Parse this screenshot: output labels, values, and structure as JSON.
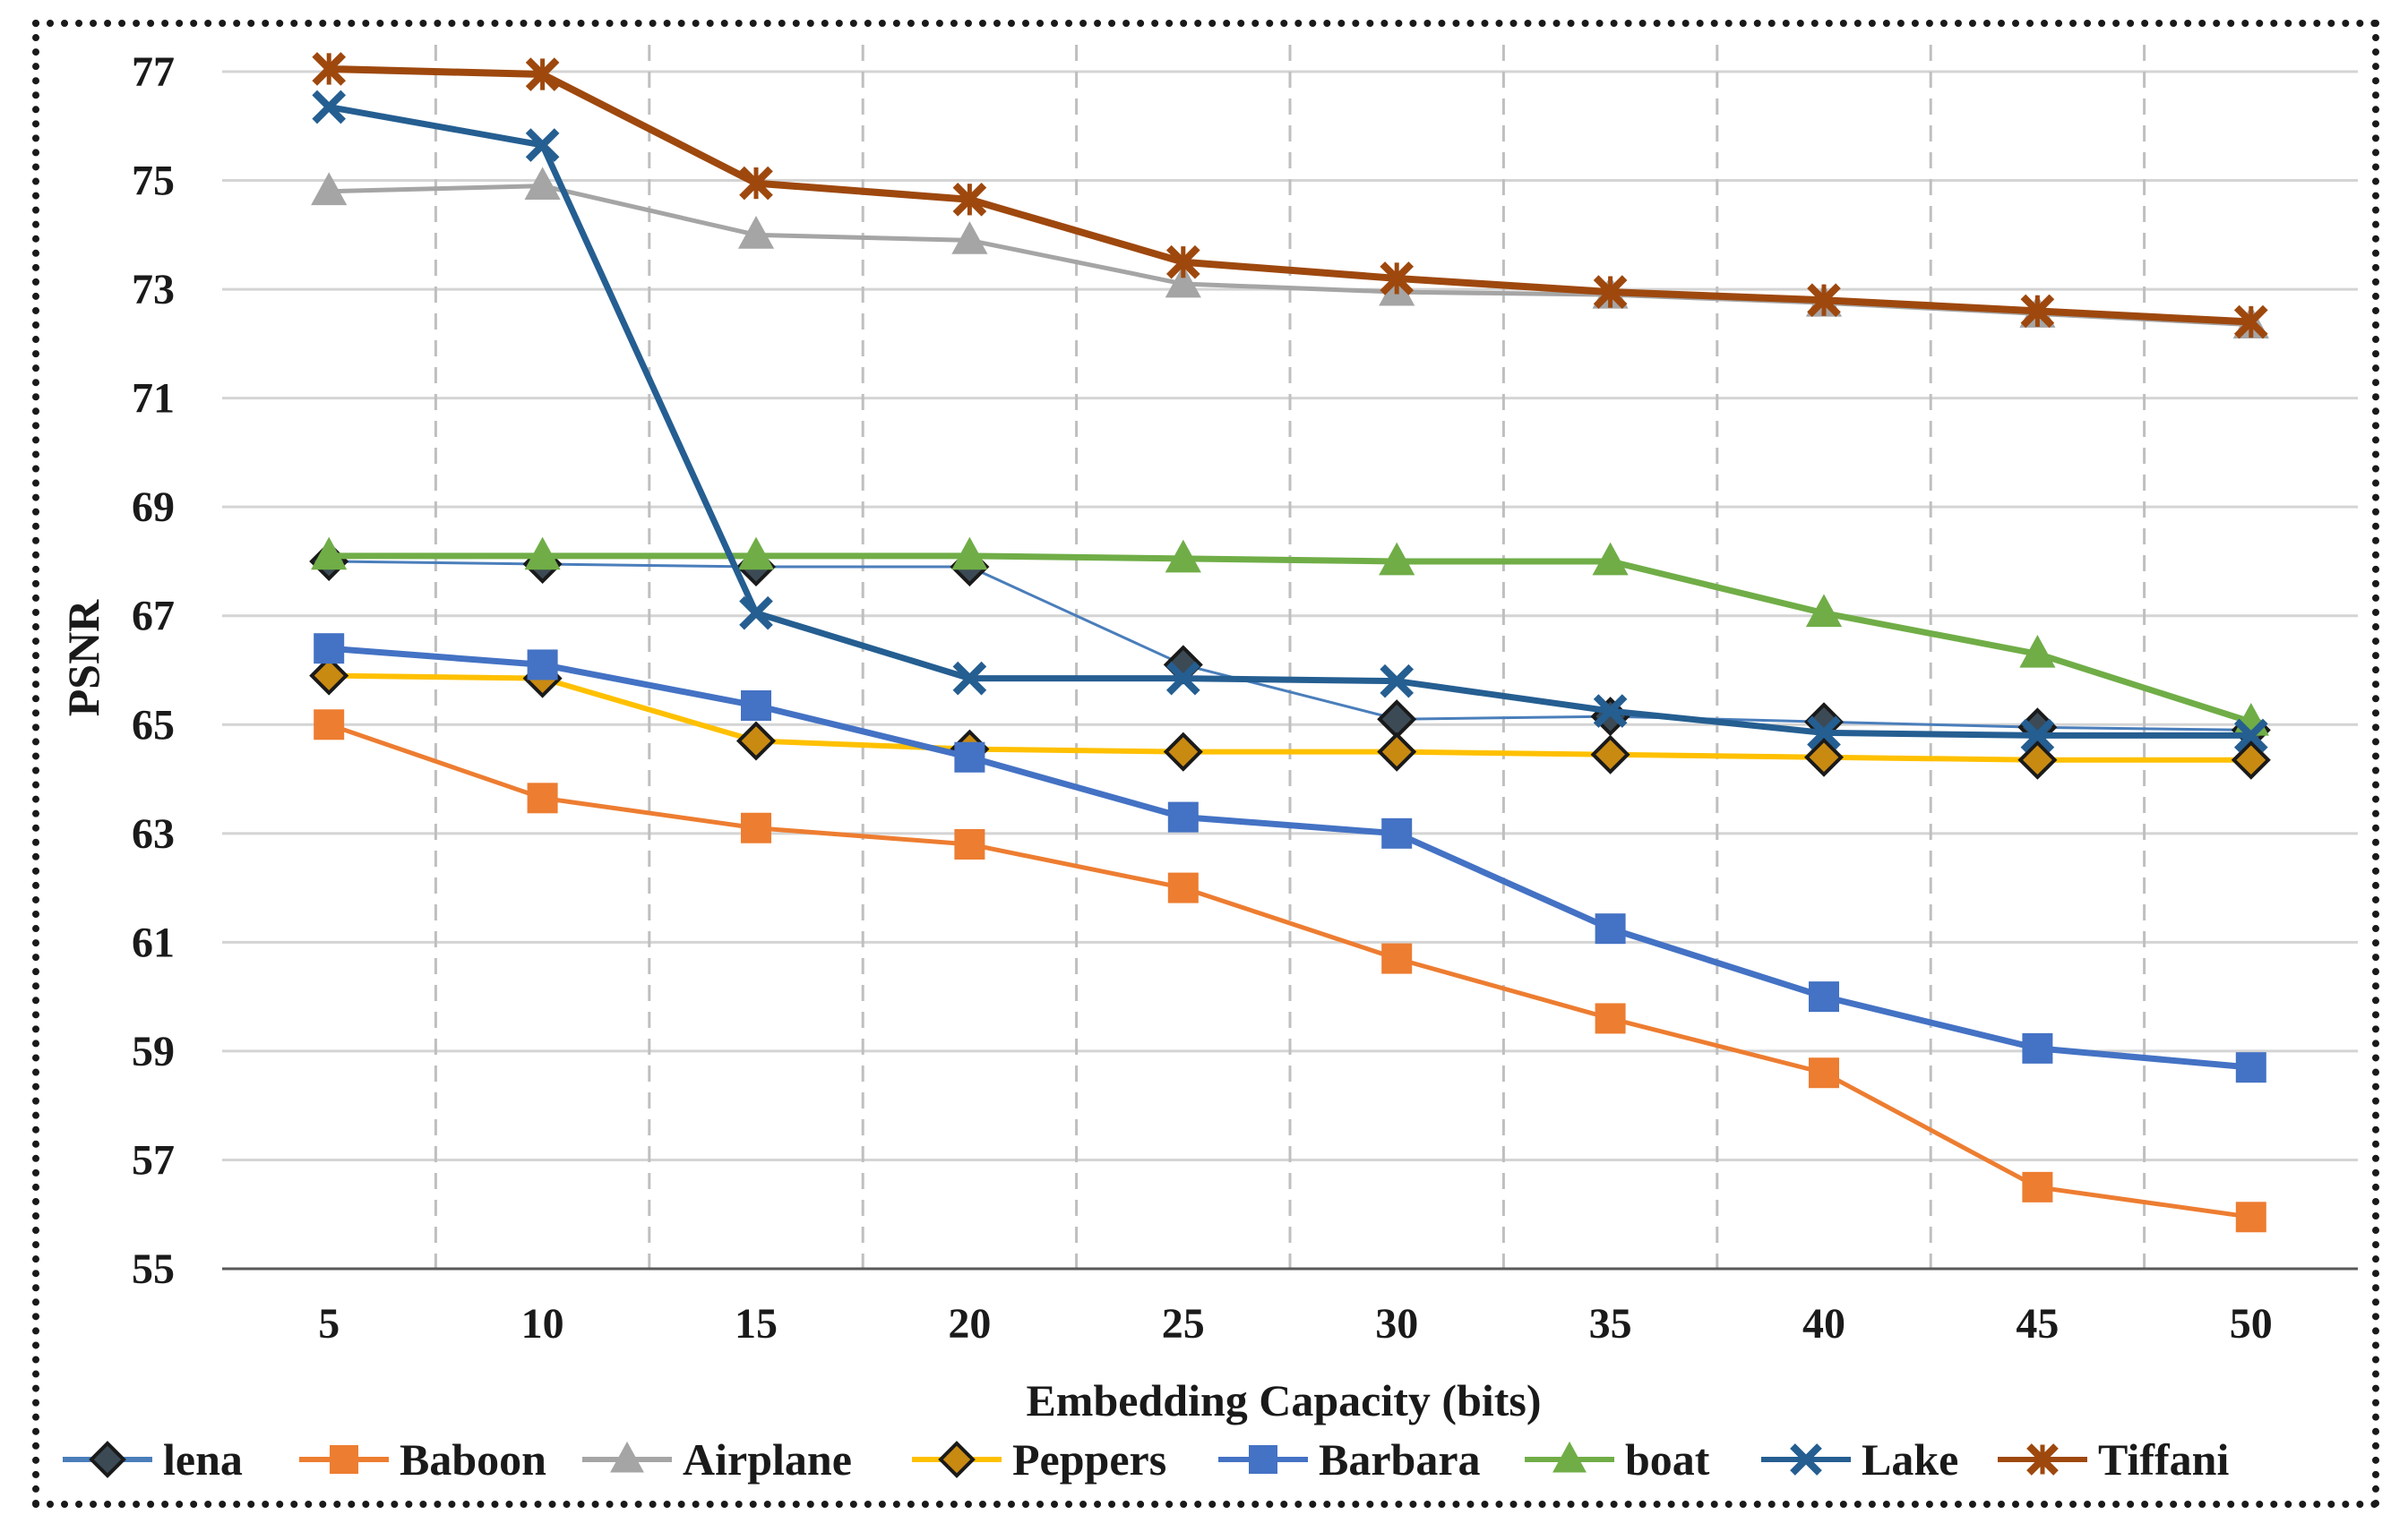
{
  "chart_data": {
    "type": "line",
    "xlabel": "Embedding Capacity (bits)",
    "ylabel": "PSNR",
    "x": [
      5,
      10,
      15,
      20,
      25,
      30,
      35,
      40,
      45,
      50
    ],
    "ylim": [
      55,
      77
    ],
    "yticks": [
      55,
      57,
      59,
      61,
      63,
      65,
      67,
      69,
      71,
      73,
      75,
      77
    ],
    "grid": {
      "horizontal": "solid",
      "vertical": "dashed"
    },
    "legend": "bottom",
    "series": [
      {
        "name": "lena",
        "color": "#4a7ebb",
        "marker": "diamond-dark",
        "values": [
          68.0,
          67.95,
          67.9,
          67.9,
          66.1,
          65.1,
          65.15,
          65.05,
          64.95,
          64.9
        ]
      },
      {
        "name": "Baboon",
        "color": "#ed7d31",
        "marker": "square",
        "values": [
          65.0,
          63.65,
          63.1,
          62.8,
          62.0,
          60.7,
          59.6,
          58.6,
          56.5,
          55.95
        ]
      },
      {
        "name": "Airplane",
        "color": "#a5a5a5",
        "marker": "triangle",
        "values": [
          74.8,
          74.9,
          74.0,
          73.9,
          73.1,
          72.95,
          72.9,
          72.75,
          72.55,
          72.35
        ]
      },
      {
        "name": "Peppers",
        "color": "#ffc000",
        "marker": "diamond-gold",
        "values": [
          65.9,
          65.85,
          64.7,
          64.55,
          64.5,
          64.5,
          64.45,
          64.4,
          64.35,
          64.35
        ]
      },
      {
        "name": "Barbara",
        "color": "#4472c4",
        "marker": "square",
        "values": [
          66.4,
          66.1,
          65.35,
          64.4,
          63.3,
          63.0,
          61.25,
          60.0,
          59.05,
          58.7
        ]
      },
      {
        "name": "boat",
        "color": "#70ad47",
        "marker": "triangle",
        "values": [
          68.1,
          68.1,
          68.1,
          68.1,
          68.05,
          68.0,
          68.0,
          67.05,
          66.3,
          65.05
        ]
      },
      {
        "name": "Lake",
        "color": "#255e91",
        "marker": "x",
        "values": [
          76.35,
          75.65,
          67.05,
          65.85,
          65.85,
          65.8,
          65.25,
          64.85,
          64.8,
          64.8
        ]
      },
      {
        "name": "Tiffani",
        "color": "#9e480e",
        "marker": "star",
        "values": [
          77.05,
          76.95,
          74.95,
          74.65,
          73.5,
          73.2,
          72.95,
          72.8,
          72.6,
          72.4
        ]
      }
    ]
  }
}
